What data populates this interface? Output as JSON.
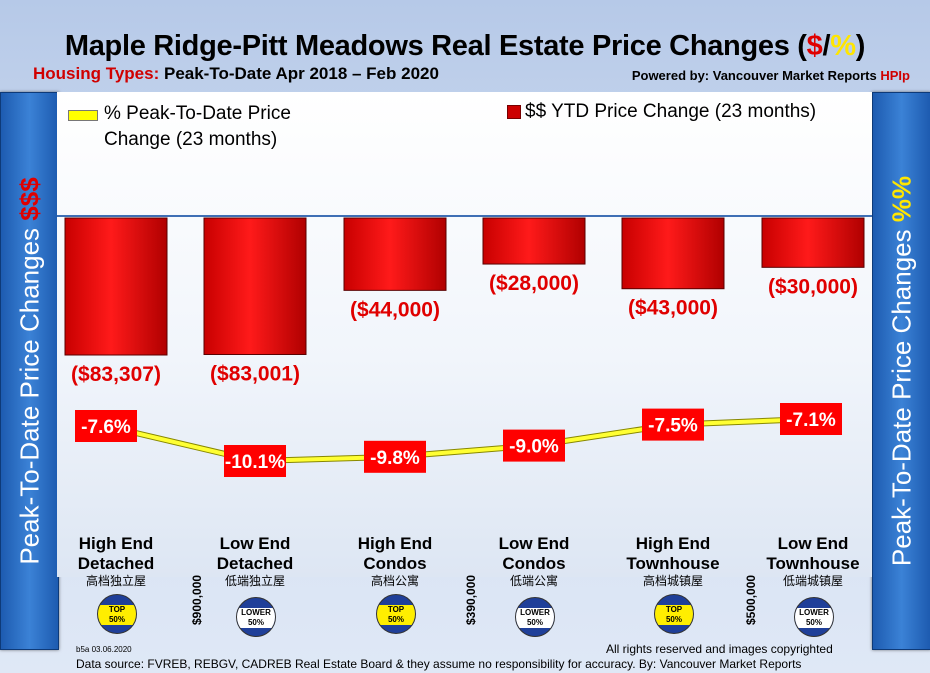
{
  "title": {
    "main": "Maple Ridge-Pitt Meadows Real Estate Price Changes (",
    "dollar": "$",
    "slash": "/",
    "percent": "%",
    "close": ")"
  },
  "subtitle": {
    "label": "Housing Types:",
    "text": "Peak-To-Date Apr 2018 – Feb 2020"
  },
  "powered": {
    "label": "Powered by: Vancouver Market Reports",
    "brand": "HPIp"
  },
  "left_axis": {
    "text": "Peak-To-Date Price Changes",
    "symbol": "$$$"
  },
  "right_axis": {
    "text": "Peak-To-Date  Price  Changes",
    "symbol": "%%"
  },
  "legend": {
    "pct": "% Peak-To-Date Price Change (23 months)",
    "dollar": "$$ YTD Price Change (23 months)"
  },
  "colors": {
    "bar": "#e60000",
    "line": "#ffff33",
    "label_bg": "#ff0000",
    "label_text": "#ffffff"
  },
  "categories": [
    {
      "name": "High End Detached",
      "line1": "High End",
      "line2": "Detached",
      "zh": "高档独立屋",
      "tier": "TOP 50%"
    },
    {
      "name": "Low End Detached",
      "line1": "Low End",
      "line2": "Detached",
      "zh": "低端独立屋",
      "tier": "LOWER 50%"
    },
    {
      "name": "High End Condos",
      "line1": "High End",
      "line2": "Condos",
      "zh": "高档公寓",
      "tier": "TOP 50%"
    },
    {
      "name": "Low End Condos",
      "line1": "Low End",
      "line2": "Condos",
      "zh": "低端公寓",
      "tier": "LOWER 50%"
    },
    {
      "name": "High End Townhouse",
      "line1": "High End",
      "line2": "Townhouse",
      "zh": "高档城镇屋",
      "tier": "TOP 50%"
    },
    {
      "name": "Low End Townhouse",
      "line1": "Low End",
      "line2": "Townhouse",
      "zh": "低端城镇屋",
      "tier": "LOWER 50%"
    }
  ],
  "badges": {
    "top_1": "TOP",
    "top_2": "50%",
    "lower_1": "LOWER",
    "lower_2": "50%"
  },
  "thresholds": [
    "$900,000",
    "$390,000",
    "$500,000"
  ],
  "chart_data": {
    "type": "bar",
    "categories": [
      "High End Detached",
      "Low End Detached",
      "High End Condos",
      "Low End Condos",
      "High End Townhouse",
      "Low End Townhouse"
    ],
    "series": [
      {
        "name": "$$ YTD Price Change (23 months)",
        "type": "bar",
        "values": [
          -83307,
          -83001,
          -44000,
          -28000,
          -43000,
          -30000
        ],
        "labels": [
          "($83,307)",
          "($83,001)",
          "($44,000)",
          "($28,000)",
          "($43,000)",
          "($30,000)"
        ]
      },
      {
        "name": "% Peak-To-Date Price Change (23 months)",
        "type": "line",
        "values": [
          -7.6,
          -10.1,
          -9.8,
          -9.0,
          -7.5,
          -7.1
        ],
        "labels": [
          "-7.6%",
          "-10.1%",
          "-9.8%",
          "-9.0%",
          "-7.5%",
          "-7.1%"
        ]
      }
    ],
    "title": "Maple Ridge-Pitt Meadows Real Estate Price Changes ($/%)",
    "ylabel": "Peak-To-Date Price Changes $$$",
    "ylabel_right": "Peak-To-Date Price Changes %%",
    "legend_position": "top"
  },
  "footer": {
    "code": "b5a 03.06.2020",
    "rights": "All rights reserved and  images copyrighted",
    "source": "Data source: FVREB, REBGV, CADREB Real Estate Board & they assume no responsibility for accuracy. By: Vancouver Market Reports"
  }
}
